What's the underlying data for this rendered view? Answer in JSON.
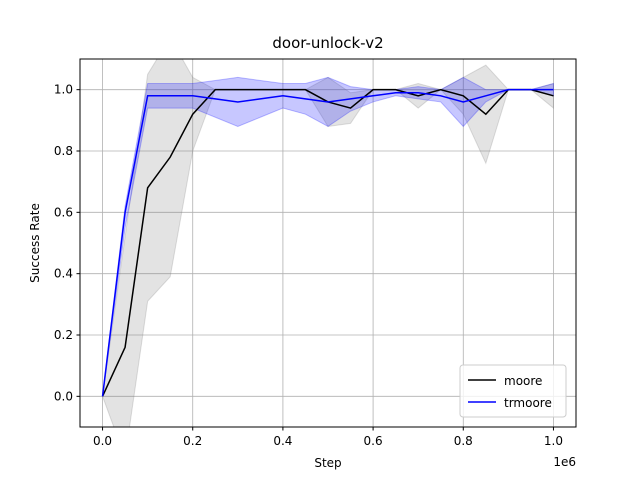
{
  "chart_data": {
    "type": "line",
    "title": "door-unlock-v2",
    "x_label": "Step",
    "y_label": "Success Rate",
    "x_offset_label": "1e6",
    "x": [
      0,
      0.05,
      0.1,
      0.15,
      0.2,
      0.25,
      0.3,
      0.35,
      0.4,
      0.45,
      0.5,
      0.55,
      0.6,
      0.65,
      0.7,
      0.75,
      0.8,
      0.85,
      0.9,
      0.95,
      1.0
    ],
    "series": [
      {
        "name": "moore",
        "color": "#000000",
        "band_color": "#808080",
        "values": [
          0,
          0.16,
          0.68,
          0.78,
          0.92,
          1,
          1,
          1,
          1,
          1,
          0.96,
          0.94,
          1,
          1,
          0.98,
          1,
          0.98,
          0.92,
          1,
          1,
          0.98
        ],
        "lower": [
          0,
          -0.2,
          0.31,
          0.39,
          0.8,
          1,
          1,
          1,
          1,
          1,
          0.88,
          0.89,
          1,
          1,
          0.94,
          1,
          0.92,
          0.76,
          1,
          1,
          0.94
        ],
        "upper": [
          0,
          0.52,
          1.05,
          1.17,
          1.04,
          1,
          1,
          1,
          1,
          1,
          1.04,
          0.99,
          1,
          1,
          1.02,
          1,
          1.04,
          1.08,
          1,
          1,
          1.02
        ]
      },
      {
        "name": "trmoore",
        "color": "#0000ff",
        "band_color": "#0000ff",
        "values": [
          0,
          0.6,
          0.98,
          0.98,
          0.98,
          0.97,
          0.96,
          0.97,
          0.98,
          0.97,
          0.96,
          0.97,
          0.98,
          0.99,
          0.99,
          0.98,
          0.96,
          0.98,
          1,
          1,
          1
        ],
        "lower": [
          0,
          0.55,
          0.94,
          0.94,
          0.94,
          0.91,
          0.88,
          0.91,
          0.94,
          0.92,
          0.88,
          0.93,
          0.96,
          0.98,
          0.97,
          0.96,
          0.88,
          0.96,
          1,
          1,
          0.98
        ],
        "upper": [
          0,
          0.62,
          1.02,
          1.02,
          1.02,
          1.03,
          1.04,
          1.03,
          1.02,
          1.02,
          1.04,
          1.01,
          1.0,
          1.0,
          1.01,
          1.0,
          1.04,
          1.0,
          1,
          1,
          1.02
        ]
      }
    ],
    "xlim": [
      -0.05,
      1.05
    ],
    "ylim": [
      -0.1,
      1.1
    ],
    "xticks": [
      {
        "value": 0,
        "label": "0.0"
      },
      {
        "value": 0.2,
        "label": "0.2"
      },
      {
        "value": 0.4,
        "label": "0.4"
      },
      {
        "value": 0.6,
        "label": "0.6"
      },
      {
        "value": 0.8,
        "label": "0.8"
      },
      {
        "value": 1,
        "label": "1.0"
      }
    ],
    "yticks": [
      {
        "value": 0,
        "label": "0.0"
      },
      {
        "value": 0.2,
        "label": "0.2"
      },
      {
        "value": 0.4,
        "label": "0.4"
      },
      {
        "value": 0.6,
        "label": "0.6"
      },
      {
        "value": 0.8,
        "label": "0.8"
      },
      {
        "value": 1,
        "label": "1.0"
      }
    ],
    "grid": true,
    "legend": "lower right"
  }
}
